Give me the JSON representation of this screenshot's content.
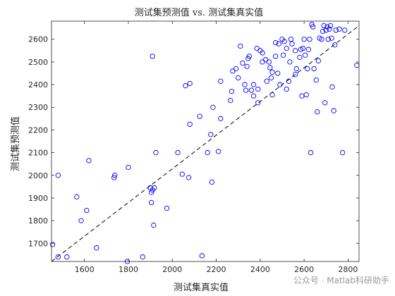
{
  "watermark": "公众号 · Matlab科研助手",
  "chart_data": {
    "type": "scatter",
    "title": "测试集预测值 vs. 测试集真实值",
    "xlabel": "测试集真实值",
    "ylabel": "测试集预测值",
    "xlim": [
      1450,
      2850
    ],
    "ylim": [
      1620,
      2680
    ],
    "xticks": [
      1600,
      1800,
      2000,
      2200,
      2400,
      2600,
      2800
    ],
    "yticks": [
      1700,
      1800,
      1900,
      2000,
      2100,
      2200,
      2300,
      2400,
      2500,
      2600
    ],
    "grid": false,
    "marker": "open-circle",
    "colors": {
      "points": "#0000ff",
      "reference_line": "#000000",
      "axes": "#262626"
    },
    "reference_line": {
      "style": "dashed",
      "from": [
        1450,
        1620
      ],
      "to": [
        2850,
        2660
      ]
    },
    "points": [
      [
        1455,
        1695
      ],
      [
        1480,
        1640
      ],
      [
        1480,
        2000
      ],
      [
        1520,
        1640
      ],
      [
        1565,
        1905
      ],
      [
        1585,
        1800
      ],
      [
        1610,
        1845
      ],
      [
        1620,
        2065
      ],
      [
        1655,
        1680
      ],
      [
        1735,
        1990
      ],
      [
        1738,
        2000
      ],
      [
        1795,
        1620
      ],
      [
        1800,
        2035
      ],
      [
        1865,
        1640
      ],
      [
        1900,
        1945
      ],
      [
        1905,
        1925
      ],
      [
        1905,
        1880
      ],
      [
        1910,
        1935
      ],
      [
        1915,
        1780
      ],
      [
        1918,
        1945
      ],
      [
        1910,
        2525
      ],
      [
        1925,
        2100
      ],
      [
        1975,
        1855
      ],
      [
        2025,
        2100
      ],
      [
        2045,
        2005
      ],
      [
        2060,
        2395
      ],
      [
        2080,
        2405
      ],
      [
        2080,
        2225
      ],
      [
        2075,
        1990
      ],
      [
        2125,
        2260
      ],
      [
        2135,
        1645
      ],
      [
        2160,
        2100
      ],
      [
        2175,
        2180
      ],
      [
        2185,
        2300
      ],
      [
        2180,
        1970
      ],
      [
        2210,
        2105
      ],
      [
        2220,
        2250
      ],
      [
        2220,
        2415
      ],
      [
        2265,
        2330
      ],
      [
        2270,
        2370
      ],
      [
        2275,
        2460
      ],
      [
        2290,
        2470
      ],
      [
        2300,
        2430
      ],
      [
        2310,
        2570
      ],
      [
        2320,
        2495
      ],
      [
        2330,
        2400
      ],
      [
        2335,
        2375
      ],
      [
        2340,
        2480
      ],
      [
        2345,
        2515
      ],
      [
        2350,
        2525
      ],
      [
        2360,
        2375
      ],
      [
        2370,
        2350
      ],
      [
        2370,
        2400
      ],
      [
        2385,
        2560
      ],
      [
        2390,
        2320
      ],
      [
        2390,
        2380
      ],
      [
        2400,
        2550
      ],
      [
        2410,
        2540
      ],
      [
        2410,
        2500
      ],
      [
        2425,
        2510
      ],
      [
        2430,
        2415
      ],
      [
        2440,
        2500
      ],
      [
        2445,
        2475
      ],
      [
        2450,
        2430
      ],
      [
        2455,
        2355
      ],
      [
        2455,
        2455
      ],
      [
        2470,
        2525
      ],
      [
        2470,
        2585
      ],
      [
        2480,
        2450
      ],
      [
        2485,
        2580
      ],
      [
        2490,
        2400
      ],
      [
        2500,
        2600
      ],
      [
        2505,
        2530
      ],
      [
        2510,
        2590
      ],
      [
        2520,
        2560
      ],
      [
        2520,
        2380
      ],
      [
        2530,
        2415
      ],
      [
        2535,
        2500
      ],
      [
        2540,
        2600
      ],
      [
        2545,
        2580
      ],
      [
        2560,
        2550
      ],
      [
        2560,
        2445
      ],
      [
        2565,
        2470
      ],
      [
        2580,
        2520
      ],
      [
        2585,
        2555
      ],
      [
        2590,
        2350
      ],
      [
        2595,
        2560
      ],
      [
        2600,
        2600
      ],
      [
        2605,
        2530
      ],
      [
        2610,
        2355
      ],
      [
        2615,
        2470
      ],
      [
        2620,
        2555
      ],
      [
        2625,
        2600
      ],
      [
        2630,
        2100
      ],
      [
        2635,
        2665
      ],
      [
        2640,
        2655
      ],
      [
        2645,
        2470
      ],
      [
        2655,
        2420
      ],
      [
        2660,
        2280
      ],
      [
        2665,
        2505
      ],
      [
        2670,
        2605
      ],
      [
        2680,
        2600
      ],
      [
        2685,
        2635
      ],
      [
        2690,
        2660
      ],
      [
        2695,
        2320
      ],
      [
        2700,
        2640
      ],
      [
        2705,
        2655
      ],
      [
        2710,
        2600
      ],
      [
        2715,
        2645
      ],
      [
        2720,
        2660
      ],
      [
        2725,
        2605
      ],
      [
        2728,
        2390
      ],
      [
        2735,
        2285
      ],
      [
        2740,
        2575
      ],
      [
        2745,
        2640
      ],
      [
        2760,
        2645
      ],
      [
        2775,
        2100
      ],
      [
        2785,
        2640
      ],
      [
        2840,
        2485
      ]
    ]
  }
}
